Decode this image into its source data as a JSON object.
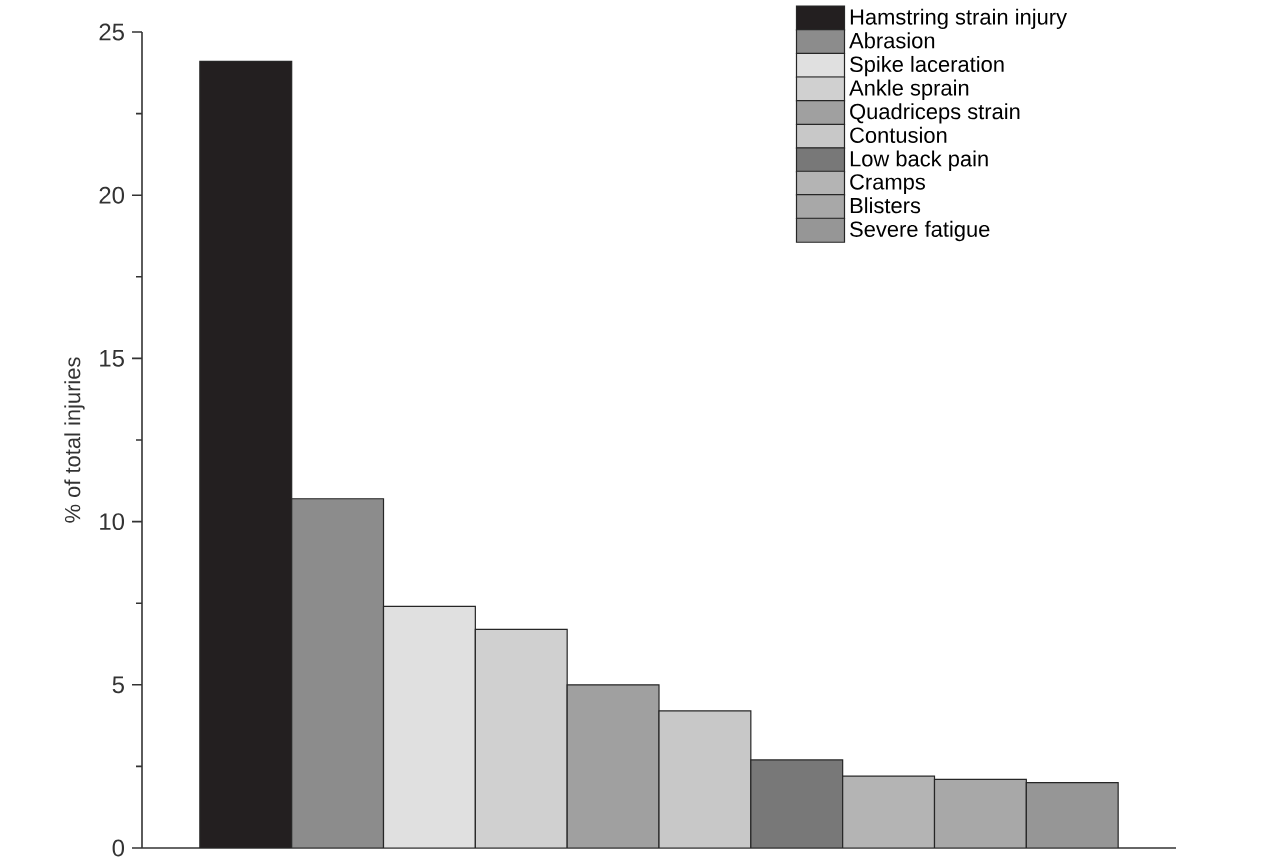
{
  "chart_data": {
    "type": "bar",
    "ylabel": "% of total injuries",
    "categories": [
      null,
      null,
      null,
      null,
      null,
      null,
      null,
      null,
      null,
      null
    ],
    "series": [
      {
        "name": "Hamstring strain injury",
        "color": "#231f20",
        "values": [
          24.1,
          null,
          null,
          null,
          null,
          null,
          null,
          null,
          null,
          null
        ]
      },
      {
        "name": "Abrasion",
        "color": "#8c8c8c",
        "values": [
          null,
          10.7,
          null,
          null,
          null,
          null,
          null,
          null,
          null,
          null
        ]
      },
      {
        "name": "Spike laceration",
        "color": "#e0e0e0",
        "values": [
          null,
          null,
          7.4,
          null,
          null,
          null,
          null,
          null,
          null,
          null
        ]
      },
      {
        "name": "Ankle sprain",
        "color": "#d0d0d0",
        "values": [
          null,
          null,
          null,
          6.7,
          null,
          null,
          null,
          null,
          null,
          null
        ]
      },
      {
        "name": "Quadriceps strain",
        "color": "#a0a0a0",
        "values": [
          null,
          null,
          null,
          null,
          5.0,
          null,
          null,
          null,
          null,
          null
        ]
      },
      {
        "name": "Contusion",
        "color": "#c8c8c8",
        "values": [
          null,
          null,
          null,
          null,
          null,
          4.2,
          null,
          null,
          null,
          null
        ]
      },
      {
        "name": "Low back pain",
        "color": "#787878",
        "values": [
          null,
          null,
          null,
          null,
          null,
          null,
          2.7,
          null,
          null,
          null
        ]
      },
      {
        "name": "Cramps",
        "color": "#b4b4b4",
        "values": [
          null,
          null,
          null,
          null,
          null,
          null,
          null,
          2.2,
          null,
          null
        ]
      },
      {
        "name": "Blisters",
        "color": "#a8a8a8",
        "values": [
          null,
          null,
          null,
          null,
          null,
          null,
          null,
          null,
          2.1,
          null
        ]
      },
      {
        "name": "Severe fatigue",
        "color": "#969696",
        "values": [
          null,
          null,
          null,
          null,
          null,
          null,
          null,
          null,
          null,
          2.0
        ]
      }
    ],
    "ylim": [
      0,
      25
    ],
    "yticks": [
      0,
      5,
      10,
      15,
      20,
      25
    ],
    "grid": false,
    "legend": "top right"
  }
}
